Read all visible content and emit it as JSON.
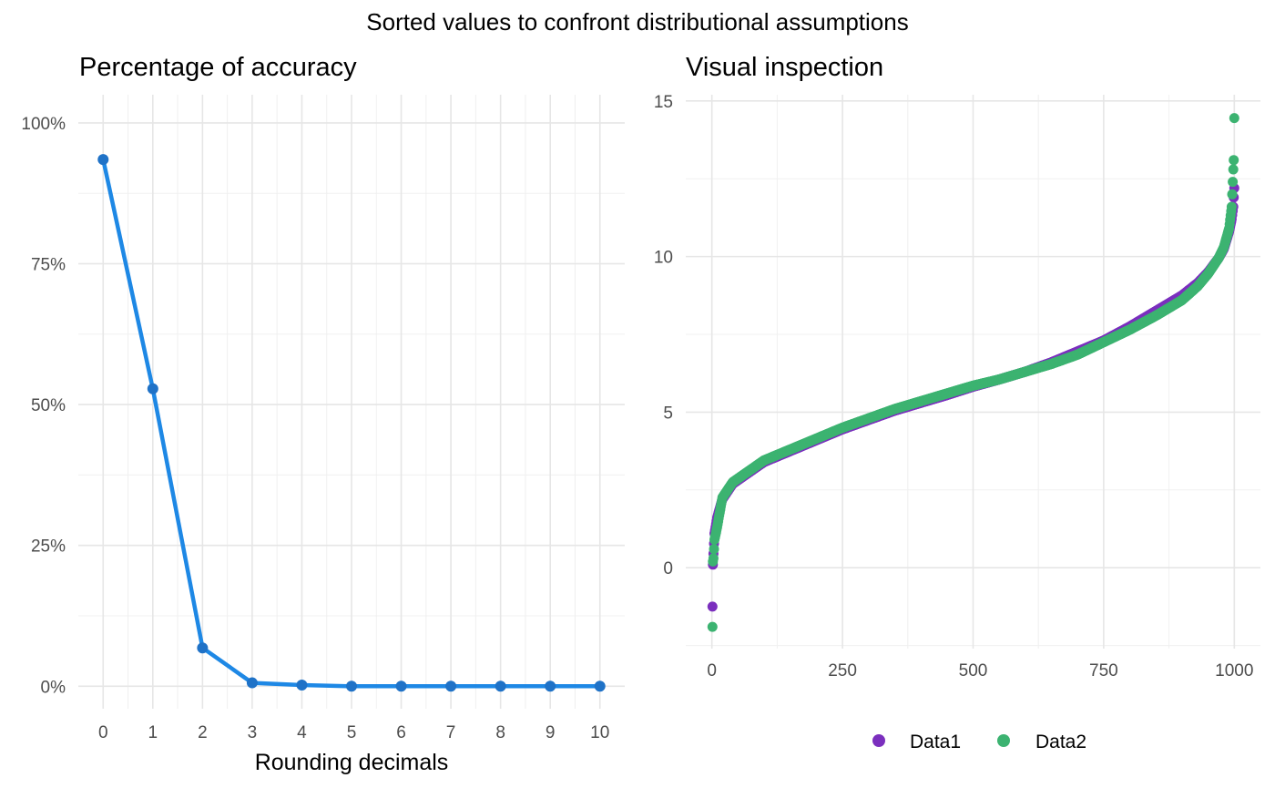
{
  "suptitle": "Sorted values to confront distributional assumptions",
  "chart_data": [
    {
      "type": "line",
      "title": "Percentage of accuracy",
      "xlabel": "Rounding decimals",
      "ylabel": "",
      "x": [
        0,
        1,
        2,
        3,
        4,
        5,
        6,
        7,
        8,
        9,
        10
      ],
      "xlim": [
        -0.5,
        10.5
      ],
      "ylim": [
        -0.04,
        1.05
      ],
      "xticks": [
        "0",
        "1",
        "2",
        "3",
        "4",
        "5",
        "6",
        "7",
        "8",
        "9",
        "10"
      ],
      "yticks": [
        {
          "value": 0,
          "label": "0%"
        },
        {
          "value": 0.25,
          "label": "25%"
        },
        {
          "value": 0.5,
          "label": "50%"
        },
        {
          "value": 0.75,
          "label": "75%"
        },
        {
          "value": 1,
          "label": "100%"
        }
      ],
      "series": [
        {
          "color": "#1e88e5",
          "values": [
            0.935,
            0.528,
            0.068,
            0.006,
            0.002,
            0.0,
            0.0,
            0.0,
            0.0,
            0.0,
            0.0
          ]
        }
      ],
      "grid": true,
      "legend": "none"
    },
    {
      "type": "scatter",
      "title": "Visual inspection",
      "xlabel": "",
      "ylabel": "",
      "xlim": [
        -50,
        1050
      ],
      "ylim": [
        -2.6,
        15.2
      ],
      "xticks": [
        {
          "value": 0,
          "label": "0"
        },
        {
          "value": 250,
          "label": "250"
        },
        {
          "value": 500,
          "label": "500"
        },
        {
          "value": 750,
          "label": "750"
        },
        {
          "value": 1000,
          "label": "1000"
        }
      ],
      "yticks": [
        {
          "value": 0,
          "label": "0"
        },
        {
          "value": 5,
          "label": "5"
        },
        {
          "value": 10,
          "label": "10"
        },
        {
          "value": 15,
          "label": "15"
        }
      ],
      "n_points": 1000,
      "series": [
        {
          "name": "Data1",
          "color": "#7b2fbe",
          "curve": [
            [
              1,
              -1.25
            ],
            [
              2,
              0.1
            ],
            [
              3,
              0.45
            ],
            [
              5,
              1.1
            ],
            [
              10,
              1.6
            ],
            [
              20,
              2.2
            ],
            [
              40,
              2.7
            ],
            [
              70,
              3.05
            ],
            [
              100,
              3.4
            ],
            [
              150,
              3.75
            ],
            [
              200,
              4.1
            ],
            [
              250,
              4.45
            ],
            [
              300,
              4.75
            ],
            [
              350,
              5.05
            ],
            [
              400,
              5.3
            ],
            [
              450,
              5.55
            ],
            [
              500,
              5.82
            ],
            [
              550,
              6.05
            ],
            [
              600,
              6.3
            ],
            [
              650,
              6.6
            ],
            [
              700,
              6.95
            ],
            [
              750,
              7.3
            ],
            [
              800,
              7.75
            ],
            [
              850,
              8.25
            ],
            [
              900,
              8.75
            ],
            [
              930,
              9.15
            ],
            [
              950,
              9.5
            ],
            [
              970,
              9.95
            ],
            [
              980,
              10.25
            ],
            [
              990,
              10.8
            ],
            [
              995,
              11.2
            ],
            [
              998,
              11.6
            ],
            [
              1000,
              12.2
            ]
          ]
        },
        {
          "name": "Data2",
          "color": "#3cb371",
          "curve": [
            [
              1,
              -1.9
            ],
            [
              2,
              0.2
            ],
            [
              3,
              0.3
            ],
            [
              5,
              0.9
            ],
            [
              10,
              1.3
            ],
            [
              20,
              2.25
            ],
            [
              40,
              2.75
            ],
            [
              70,
              3.1
            ],
            [
              100,
              3.45
            ],
            [
              150,
              3.8
            ],
            [
              200,
              4.15
            ],
            [
              250,
              4.5
            ],
            [
              300,
              4.8
            ],
            [
              350,
              5.1
            ],
            [
              400,
              5.35
            ],
            [
              450,
              5.6
            ],
            [
              500,
              5.85
            ],
            [
              550,
              6.05
            ],
            [
              600,
              6.3
            ],
            [
              650,
              6.55
            ],
            [
              700,
              6.85
            ],
            [
              750,
              7.25
            ],
            [
              800,
              7.65
            ],
            [
              850,
              8.1
            ],
            [
              900,
              8.6
            ],
            [
              930,
              9.05
            ],
            [
              950,
              9.45
            ],
            [
              970,
              9.95
            ],
            [
              980,
              10.3
            ],
            [
              990,
              10.9
            ],
            [
              995,
              11.6
            ],
            [
              998,
              12.8
            ],
            [
              999,
              13.1
            ],
            [
              1000,
              14.45
            ]
          ]
        }
      ],
      "grid": true,
      "legend": "bottom"
    }
  ]
}
